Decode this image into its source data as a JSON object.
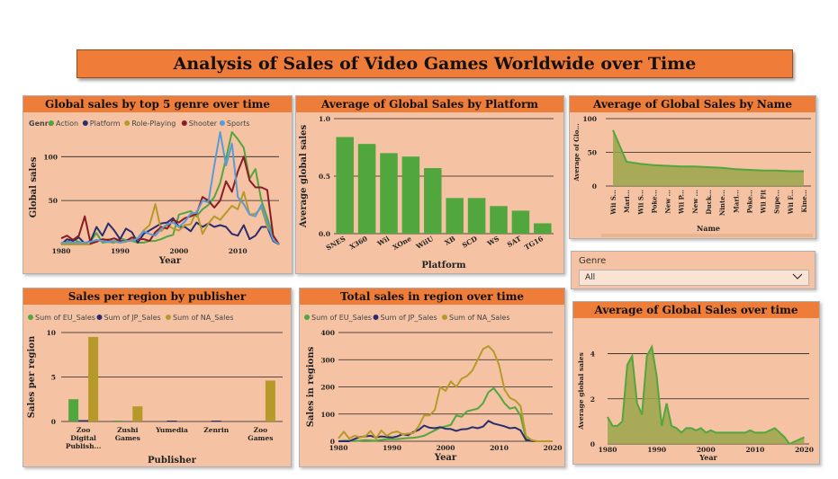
{
  "page_title": "Analysis of Sales of Video Games Worldwide over Time",
  "colors": {
    "orange": "#ee7d3a",
    "panel": "#f5c3a3",
    "green": "#52a63e",
    "navy": "#2b2d6e",
    "gold": "#b59a2a",
    "maroon": "#8a1c26",
    "sky": "#5b9bd5"
  },
  "slicer": {
    "label": "Genre",
    "value": "All",
    "icon": "chevron-down-icon"
  },
  "chart_data": [
    {
      "id": "genre",
      "type": "line",
      "title": "Global sales by top 5 genre over time",
      "legend_title": "Genre",
      "xlabel": "Year",
      "ylabel": "Global sales",
      "xlim": [
        1980,
        2017
      ],
      "ylim": [
        0,
        130
      ],
      "xticks": [
        "1980",
        "1990",
        "2000",
        "2010"
      ],
      "yticks": [
        "50",
        "100"
      ],
      "x": [
        1980,
        1981,
        1982,
        1983,
        1984,
        1985,
        1986,
        1987,
        1988,
        1989,
        1990,
        1991,
        1992,
        1993,
        1994,
        1995,
        1996,
        1997,
        1998,
        1999,
        2000,
        2001,
        2002,
        2003,
        2004,
        2005,
        2006,
        2007,
        2008,
        2009,
        2010,
        2011,
        2012,
        2013,
        2014,
        2015,
        2016,
        2017
      ],
      "series": [
        {
          "name": "Action",
          "color": "#52a63e",
          "values": [
            1,
            3,
            6,
            3,
            1,
            4,
            13,
            2,
            3,
            2,
            7,
            5,
            4,
            2,
            2,
            4,
            4,
            6,
            9,
            11,
            34,
            36,
            38,
            32,
            40,
            45,
            54,
            70,
            98,
            128,
            120,
            110,
            75,
            86,
            50,
            30,
            10,
            0
          ]
        },
        {
          "name": "Platform",
          "color": "#2b2d6e",
          "values": [
            0,
            6,
            4,
            8,
            1,
            4,
            20,
            10,
            24,
            16,
            6,
            18,
            14,
            2,
            12,
            16,
            20,
            24,
            25,
            30,
            20,
            20,
            15,
            25,
            20,
            24,
            20,
            22,
            20,
            12,
            10,
            22,
            6,
            10,
            20,
            20,
            4,
            0
          ]
        },
        {
          "name": "Role-Playing",
          "color": "#b59a2a",
          "values": [
            0,
            0,
            0,
            0,
            0,
            0,
            5,
            4,
            6,
            3,
            2,
            3,
            6,
            7,
            16,
            22,
            46,
            15,
            22,
            18,
            16,
            22,
            23,
            38,
            12,
            24,
            32,
            28,
            36,
            44,
            40,
            60,
            34,
            35,
            42,
            20,
            10,
            0
          ]
        },
        {
          "name": "Shooter",
          "color": "#8a1c26",
          "values": [
            7,
            10,
            5,
            10,
            32,
            1,
            3,
            6,
            5,
            7,
            4,
            4,
            8,
            6,
            6,
            4,
            14,
            20,
            18,
            28,
            25,
            30,
            32,
            35,
            54,
            50,
            42,
            50,
            72,
            60,
            83,
            100,
            73,
            65,
            65,
            62,
            10,
            0
          ]
        },
        {
          "name": "Sports",
          "color": "#5b9bd5",
          "values": [
            2,
            2,
            2,
            2,
            2,
            3,
            5,
            4,
            3,
            4,
            2,
            4,
            4,
            7,
            15,
            12,
            10,
            18,
            23,
            25,
            20,
            26,
            35,
            36,
            50,
            48,
            90,
            128,
            90,
            115,
            54,
            46,
            34,
            32,
            45,
            25,
            5,
            0
          ]
        }
      ]
    },
    {
      "id": "platform",
      "type": "bar",
      "title": "Average of Global Sales by Platform",
      "xlabel": "Platform",
      "ylabel": "Average global sales",
      "ylim": [
        0,
        1.0
      ],
      "yticks": [
        "0.0",
        "0.5",
        "1.0"
      ],
      "categories": [
        "SNES",
        "X360",
        "Wii",
        "XOne",
        "WiiU",
        "XB",
        "SCD",
        "WS",
        "SAT",
        "TG16"
      ],
      "values": [
        0.84,
        0.78,
        0.7,
        0.67,
        0.57,
        0.31,
        0.31,
        0.24,
        0.2,
        0.09
      ],
      "color": "#52a63e"
    },
    {
      "id": "name",
      "type": "area",
      "title": "Average of Global Sales by Name",
      "xlabel": "Name",
      "ylabel": "Average of Glo...",
      "ylim": [
        0,
        100
      ],
      "yticks": [
        "0",
        "50",
        "100"
      ],
      "categories": [
        "Wii S...",
        "Mari...",
        "Wii S...",
        "Poke...",
        "New ...",
        "Wii P...",
        "New ...",
        "Duck...",
        "Ninte...",
        "Mari...",
        "Poke...",
        "Wii Fit",
        "Supe...",
        "Wii F...",
        "Kine..."
      ],
      "values": [
        83,
        36,
        33,
        31,
        30,
        29,
        29,
        28,
        27,
        25,
        24,
        23,
        23,
        22,
        22
      ]
    },
    {
      "id": "publisher",
      "type": "bar",
      "title": "Sales per region by publisher",
      "xlabel": "Publisher",
      "ylabel": "Sales per region",
      "ylim": [
        0,
        10
      ],
      "yticks": [
        "0",
        "5",
        "10"
      ],
      "categories": [
        "Zoo Digital Publish...",
        "Zushi Games",
        "Yumedia",
        "Zenrin",
        "Zoo Games"
      ],
      "category_lines": [
        [
          "Zoo",
          "Digital",
          "Publish..."
        ],
        [
          "Zushi",
          "Games"
        ],
        [
          "Yumedia"
        ],
        [
          "Zenrin"
        ],
        [
          "Zoo",
          "Games"
        ]
      ],
      "series": [
        {
          "name": "Sum of EU_Sales",
          "color": "#52a63e",
          "values": [
            2.5,
            0.05,
            0.0,
            0.0,
            0.0
          ]
        },
        {
          "name": "Sum of JP_Sales",
          "color": "#2b2d6e",
          "values": [
            0.15,
            0.0,
            0.08,
            0.08,
            0.0
          ]
        },
        {
          "name": "Sum of NA_Sales",
          "color": "#b59a2a",
          "values": [
            9.5,
            1.7,
            0.0,
            0.0,
            4.6
          ]
        }
      ]
    },
    {
      "id": "region",
      "type": "line",
      "title": "Total sales in region over time",
      "xlabel": "Year",
      "ylabel": "Sales in regions",
      "xlim": [
        1980,
        2020
      ],
      "ylim": [
        0,
        400
      ],
      "xticks": [
        "1980",
        "1990",
        "2000",
        "2010",
        "2020"
      ],
      "yticks": [
        "0",
        "100",
        "200",
        "300",
        "400"
      ],
      "x": [
        1980,
        1981,
        1982,
        1983,
        1984,
        1985,
        1986,
        1987,
        1988,
        1989,
        1990,
        1991,
        1992,
        1993,
        1994,
        1995,
        1996,
        1997,
        1998,
        1999,
        2000,
        2001,
        2002,
        2003,
        2004,
        2005,
        2006,
        2007,
        2008,
        2009,
        2010,
        2011,
        2012,
        2013,
        2014,
        2015,
        2016,
        2017,
        2018,
        2019,
        2020
      ],
      "series": [
        {
          "name": "Sum of EU_Sales",
          "color": "#52a63e",
          "values": [
            0,
            2,
            2,
            1,
            2,
            4,
            3,
            2,
            5,
            8,
            8,
            8,
            10,
            12,
            13,
            16,
            20,
            30,
            40,
            50,
            55,
            60,
            95,
            90,
            110,
            115,
            120,
            140,
            180,
            195,
            170,
            140,
            120,
            125,
            95,
            10,
            2,
            0,
            0,
            0,
            0
          ]
        },
        {
          "name": "Sum of JP_Sales",
          "color": "#2b2d6e",
          "values": [
            0,
            0,
            0,
            8,
            16,
            18,
            20,
            14,
            18,
            16,
            14,
            18,
            26,
            22,
            34,
            42,
            58,
            50,
            48,
            52,
            46,
            45,
            38,
            44,
            45,
            52,
            48,
            54,
            75,
            65,
            60,
            55,
            48,
            50,
            40,
            5,
            1,
            0,
            0,
            0,
            0
          ]
        },
        {
          "name": "Sum of NA_Sales",
          "color": "#b59a2a",
          "values": [
            11,
            35,
            10,
            20,
            15,
            18,
            38,
            10,
            40,
            20,
            32,
            36,
            25,
            28,
            30,
            56,
            95,
            95,
            115,
            200,
            185,
            220,
            200,
            230,
            240,
            260,
            300,
            340,
            350,
            330,
            280,
            190,
            160,
            150,
            130,
            20,
            5,
            0,
            0,
            0,
            0
          ]
        }
      ]
    },
    {
      "id": "avgtime",
      "type": "area",
      "title": "Average of Global Sales over time",
      "xlabel": "Year",
      "ylabel": "Average global sales",
      "xlim": [
        1980,
        2021
      ],
      "ylim": [
        0,
        4.7
      ],
      "xticks": [
        "1980",
        "1990",
        "2000",
        "2010",
        "2020"
      ],
      "yticks": [
        "0",
        "2",
        "4"
      ],
      "x": [
        1980,
        1981,
        1982,
        1983,
        1984,
        1985,
        1986,
        1987,
        1988,
        1989,
        1990,
        1991,
        1992,
        1993,
        1994,
        1995,
        1996,
        1997,
        1998,
        1999,
        2000,
        2001,
        2002,
        2003,
        2004,
        2005,
        2006,
        2007,
        2008,
        2009,
        2010,
        2011,
        2012,
        2013,
        2014,
        2015,
        2016,
        2017,
        2018,
        2019,
        2020
      ],
      "values": [
        1.2,
        0.8,
        0.8,
        1.0,
        3.5,
        3.9,
        1.8,
        1.3,
        3.9,
        4.3,
        3.0,
        0.8,
        1.8,
        0.8,
        0.7,
        0.5,
        0.7,
        0.7,
        0.6,
        0.7,
        0.5,
        0.6,
        0.5,
        0.5,
        0.5,
        0.5,
        0.5,
        0.5,
        0.5,
        0.6,
        0.5,
        0.5,
        0.5,
        0.6,
        0.7,
        0.5,
        0.3,
        0.0,
        0.1,
        0.2,
        0.3
      ]
    }
  ]
}
